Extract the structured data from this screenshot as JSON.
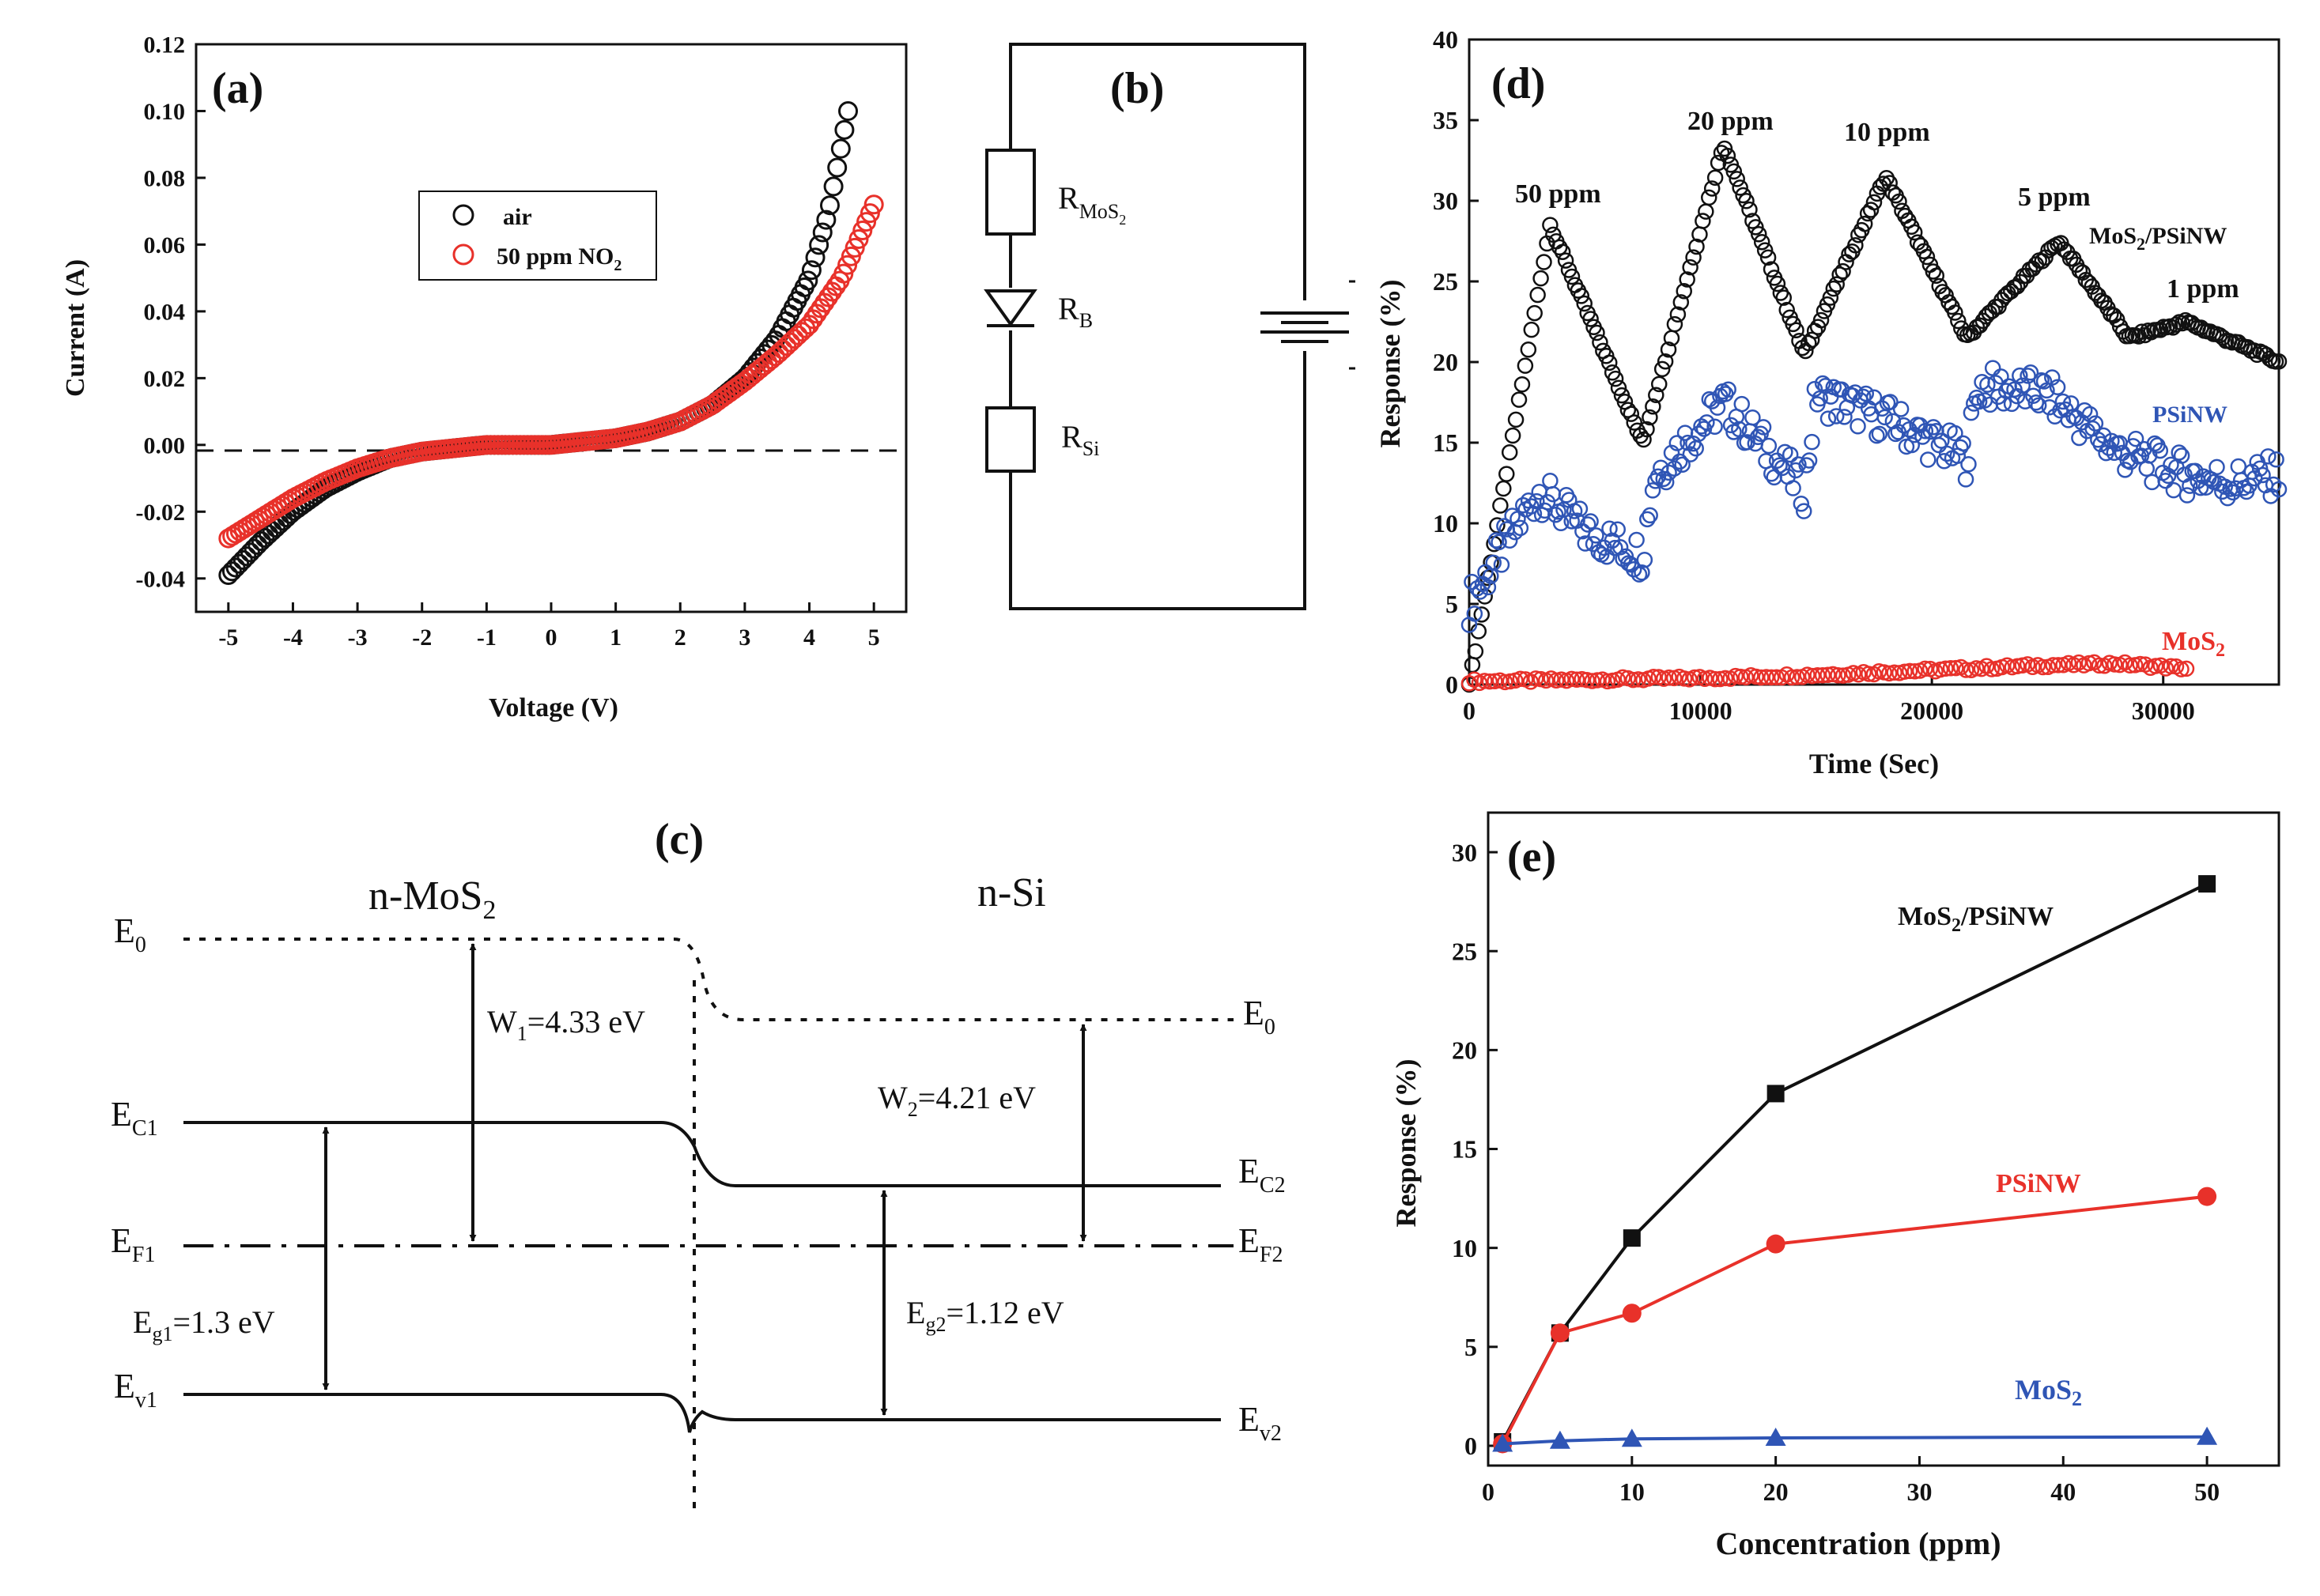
{
  "panels": {
    "a": "(a)",
    "b": "(b)",
    "c": "(c)",
    "d": "(d)",
    "e": "(e)"
  },
  "colors": {
    "black": "#111111",
    "red": "#e8312a",
    "blue": "#2f55b5",
    "white": "#ffffff"
  },
  "chart_data": [
    {
      "id": "a",
      "type": "scatter",
      "title": "",
      "xlabel": "Voltage (V)",
      "ylabel": "Current (A)",
      "xlim": [
        -5.5,
        5.5
      ],
      "ylim": [
        -0.05,
        0.12
      ],
      "xticks": [
        -5,
        -4,
        -3,
        -2,
        -1,
        0,
        1,
        2,
        3,
        4,
        5
      ],
      "xtick_labels": [
        "-5",
        "-4",
        "-3",
        "-2",
        "-1",
        "0",
        "1",
        "2",
        "3",
        "4",
        "5"
      ],
      "yticks": [
        -0.04,
        -0.02,
        0,
        0.02,
        0.04,
        0.06,
        0.08,
        0.1,
        0.12
      ],
      "ytick_labels": [
        "-0.04",
        "-0.02",
        "0.00",
        "0.02",
        "0.04",
        "0.06",
        "0.08",
        "0.10",
        "0.12"
      ],
      "legend": {
        "position": "top-center",
        "entries": [
          "air",
          "50 ppm NO",
          "2"
        ]
      },
      "reference_line": {
        "y": 0,
        "style": "dashed"
      },
      "series": [
        {
          "name": "air",
          "color": "#111111",
          "x": [
            -5,
            -4.5,
            -4,
            -3.5,
            -3,
            -2.5,
            -2,
            -1.5,
            -1,
            -0.5,
            0,
            0.5,
            1,
            1.5,
            2,
            2.5,
            3,
            3.5,
            4,
            4.3,
            4.6
          ],
          "y": [
            -0.039,
            -0.029,
            -0.02,
            -0.013,
            -0.008,
            -0.004,
            -0.002,
            -0.001,
            0,
            0,
            0,
            0.001,
            0.002,
            0.004,
            0.007,
            0.012,
            0.02,
            0.032,
            0.05,
            0.07,
            0.1
          ]
        },
        {
          "name": "50 ppm NO2",
          "color": "#e8312a",
          "x": [
            -5,
            -4.5,
            -4,
            -3.5,
            -3,
            -2.5,
            -2,
            -1.5,
            -1,
            -0.5,
            0,
            0.5,
            1,
            1.5,
            2,
            2.5,
            3,
            3.5,
            4,
            4.5,
            5
          ],
          "y": [
            -0.028,
            -0.022,
            -0.016,
            -0.011,
            -0.007,
            -0.004,
            -0.002,
            -0.001,
            0,
            0,
            0,
            0.001,
            0.002,
            0.004,
            0.007,
            0.012,
            0.019,
            0.027,
            0.036,
            0.05,
            0.072
          ]
        }
      ]
    },
    {
      "id": "d",
      "type": "scatter",
      "title": "",
      "xlabel": "Time (Sec)",
      "ylabel": "Response (%)",
      "xlim": [
        0,
        35000
      ],
      "ylim": [
        0,
        40
      ],
      "xticks": [
        0,
        10000,
        20000,
        30000
      ],
      "xtick_labels": [
        "0",
        "10000",
        "20000",
        "30000"
      ],
      "yticks": [
        0,
        5,
        10,
        15,
        20,
        25,
        30,
        35,
        40
      ],
      "ytick_labels": [
        "0",
        "5",
        "10",
        "15",
        "20",
        "25",
        "30",
        "35",
        "40"
      ],
      "annotations": [
        "50 ppm",
        "20 ppm",
        "10 ppm",
        "5 ppm",
        "1 ppm"
      ],
      "series": [
        {
          "name": "MoS2/PSiNW",
          "label_main": "MoS",
          "label_sub": "2",
          "label_tail": "/PSiNW",
          "color": "#111111",
          "x": [
            0,
            3500,
            7500,
            11000,
            14500,
            18000,
            21500,
            25500,
            28500,
            31000,
            35000
          ],
          "y": [
            0,
            28.5,
            15,
            33.5,
            20.5,
            31.5,
            21.5,
            27.5,
            21.5,
            22.5,
            20
          ]
        },
        {
          "name": "PSiNW",
          "label": "PSiNW",
          "color": "#2f55b5",
          "x": [
            0,
            3000,
            5000,
            7500,
            8000,
            11000,
            14500,
            15000,
            18000,
            21500,
            22000,
            25000,
            28000,
            31000,
            33000,
            35000
          ],
          "y": [
            5,
            12,
            9.5,
            8,
            13,
            17.5,
            12,
            18,
            16.5,
            14,
            18.5,
            18,
            14.5,
            13,
            12.5,
            13
          ]
        },
        {
          "name": "MoS2",
          "label_main": "MoS",
          "label_sub": "2",
          "color": "#e8312a",
          "x": [
            0,
            5000,
            10000,
            15000,
            20000,
            25000,
            28000,
            31000
          ],
          "y": [
            0.2,
            0.3,
            0.4,
            0.6,
            0.9,
            1.2,
            1.3,
            1.0
          ]
        }
      ]
    },
    {
      "id": "e",
      "type": "line",
      "title": "",
      "xlabel": "Concentration (ppm)",
      "ylabel": "Response (%)",
      "xlim": [
        0,
        55
      ],
      "ylim": [
        -1,
        32
      ],
      "xticks": [
        0,
        10,
        20,
        30,
        40,
        50
      ],
      "xtick_labels": [
        "0",
        "10",
        "20",
        "30",
        "40",
        "50"
      ],
      "yticks": [
        0,
        5,
        10,
        15,
        20,
        25,
        30
      ],
      "ytick_labels": [
        "0",
        "5",
        "10",
        "15",
        "20",
        "25",
        "30"
      ],
      "x": [
        1,
        5,
        10,
        20,
        50
      ],
      "series": [
        {
          "name": "MoS2/PSiNW",
          "label_main": "MoS",
          "label_sub": "2",
          "label_tail": "/PSiNW",
          "color": "#111111",
          "marker": "square",
          "values": [
            0.2,
            5.7,
            10.5,
            17.8,
            28.4
          ]
        },
        {
          "name": "PSiNW",
          "label": "PSiNW",
          "color": "#e8312a",
          "marker": "circle",
          "values": [
            0.1,
            5.7,
            6.7,
            10.2,
            12.6
          ]
        },
        {
          "name": "MoS2",
          "label_main": "MoS",
          "label_sub": "2",
          "color": "#2f55b5",
          "marker": "triangle",
          "values": [
            0.1,
            0.25,
            0.35,
            0.4,
            0.45
          ]
        }
      ]
    }
  ],
  "circuit": {
    "r_mos2_main": "R",
    "r_mos2_sub": "MoS",
    "r_mos2_sub2": "2",
    "rb_main": "R",
    "rb_sub": "B",
    "rsi_main": "R",
    "rsi_sub": "Si"
  },
  "band": {
    "left_title_main": "n-MoS",
    "left_title_sub": "2",
    "right_title": "n-Si",
    "e0_left_main": "E",
    "e0_left_sub": "0",
    "e0_right_main": "E",
    "e0_right_sub": "0",
    "ec1_main": "E",
    "ec1_sub": "C1",
    "ef1_main": "E",
    "ef1_sub": "F1",
    "ev1_main": "E",
    "ev1_sub": "v1",
    "ec2_main": "E",
    "ec2_sub": "C2",
    "ef2_main": "E",
    "ef2_sub": "F2",
    "ev2_main": "E",
    "ev2_sub": "v2",
    "w1_main": "W",
    "w1_sub": "1",
    "w1_val": "=4.33 eV",
    "w2_main": "W",
    "w2_sub": "2",
    "w2_val": "=4.21 eV",
    "eg1_main": "E",
    "eg1_sub": "g1",
    "eg1_val": "=1.3 eV",
    "eg2_main": "E",
    "eg2_sub": "g2",
    "eg2_val": "=1.12 eV"
  }
}
